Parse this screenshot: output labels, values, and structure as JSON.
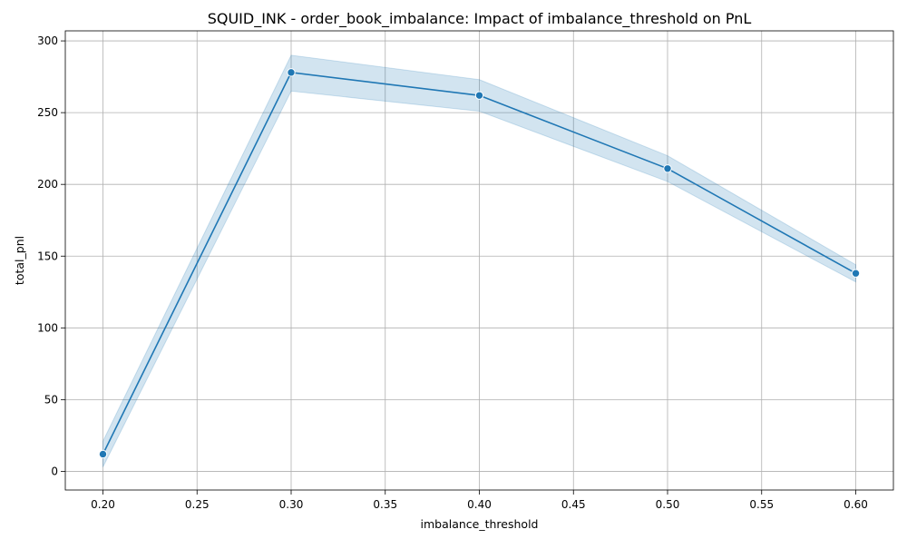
{
  "chart_data": {
    "type": "line",
    "title": "SQUID_INK - order_book_imbalance: Impact of imbalance_threshold on PnL",
    "xlabel": "imbalance_threshold",
    "ylabel": "total_pnl",
    "xlim": [
      0.18,
      0.62
    ],
    "ylim": [
      -13,
      307
    ],
    "x_ticks": [
      0.2,
      0.25,
      0.3,
      0.35,
      0.4,
      0.45,
      0.5,
      0.55,
      0.6
    ],
    "x_tick_labels": [
      "0.20",
      "0.25",
      "0.30",
      "0.35",
      "0.40",
      "0.45",
      "0.50",
      "0.55",
      "0.60"
    ],
    "y_ticks": [
      0,
      50,
      100,
      150,
      200,
      250,
      300
    ],
    "y_tick_labels": [
      "0",
      "50",
      "100",
      "150",
      "200",
      "250",
      "300"
    ],
    "grid": true,
    "legend": "none",
    "line_color": "#1f77b4",
    "band_color": "#1f77b4",
    "series": [
      {
        "x": [
          0.2,
          0.3,
          0.4,
          0.5,
          0.6
        ],
        "y": [
          12,
          278,
          262,
          211,
          138
        ],
        "ci_lower": [
          3,
          265,
          251,
          202,
          132
        ],
        "ci_upper": [
          21,
          290,
          273,
          220,
          144
        ]
      }
    ]
  }
}
